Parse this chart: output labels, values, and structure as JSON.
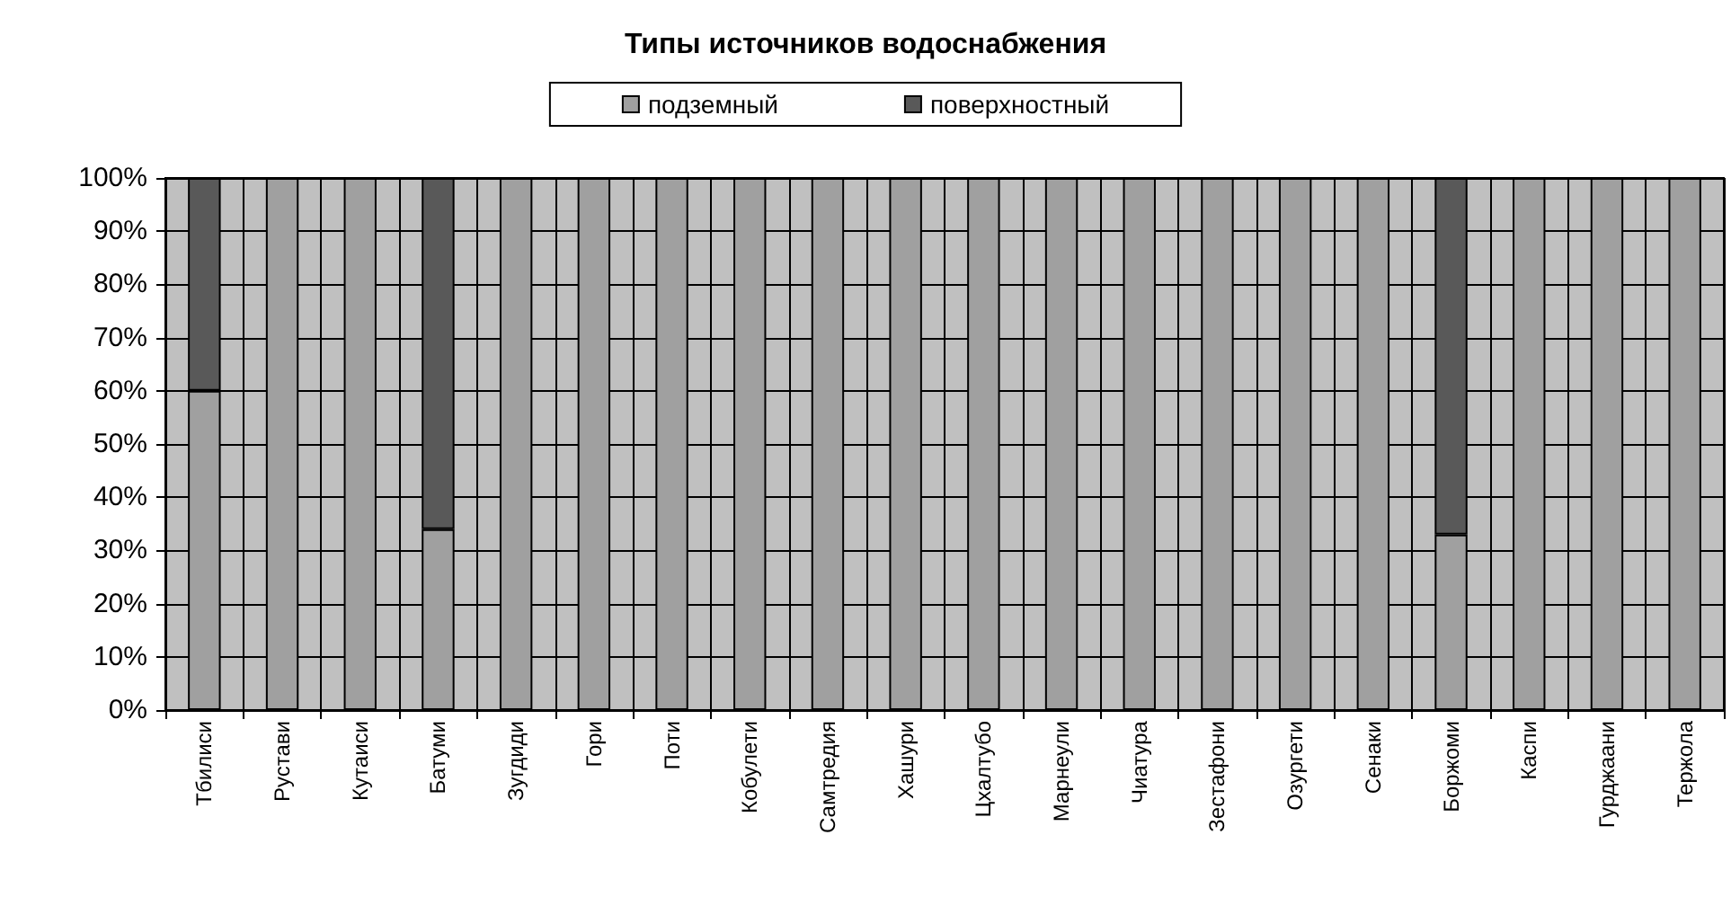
{
  "chart_data": {
    "type": "bar",
    "title": "Типы источников водоснабжения",
    "categories": [
      "Тбилиси",
      "Рустави",
      "Кутаиси",
      "Батуми",
      "Зугдиди",
      "Гори",
      "Поти",
      "Кобулети",
      "Самтредия",
      "Хашури",
      "Цхалтубо",
      "Марнеули",
      "Чиатура",
      "Зестафони",
      "Озургети",
      "Сенаки",
      "Боржоми",
      "Каспи",
      "Гурджаани",
      "Тержола"
    ],
    "series": [
      {
        "name": "подземный",
        "color": "#a0a0a0",
        "values": [
          60,
          100,
          100,
          34,
          100,
          100,
          100,
          100,
          100,
          100,
          100,
          100,
          100,
          100,
          100,
          100,
          33,
          100,
          100,
          100
        ]
      },
      {
        "name": "поверхностный",
        "color": "#595959",
        "values": [
          40,
          null,
          null,
          66,
          null,
          null,
          null,
          null,
          null,
          null,
          null,
          null,
          null,
          null,
          null,
          null,
          67,
          null,
          null,
          null
        ]
      }
    ],
    "stacked": true,
    "ylim": [
      0,
      100
    ],
    "yticks": [
      {
        "value": 0,
        "label": "0%"
      },
      {
        "value": 10,
        "label": "10%"
      },
      {
        "value": 20,
        "label": "20%"
      },
      {
        "value": 30,
        "label": "30%"
      },
      {
        "value": 40,
        "label": "40%"
      },
      {
        "value": 50,
        "label": "50%"
      },
      {
        "value": 60,
        "label": "60%"
      },
      {
        "value": 70,
        "label": "70%"
      },
      {
        "value": 80,
        "label": "80%"
      },
      {
        "value": 90,
        "label": "90%"
      },
      {
        "value": 100,
        "label": "100%"
      }
    ],
    "grid": true,
    "legend": "top"
  }
}
